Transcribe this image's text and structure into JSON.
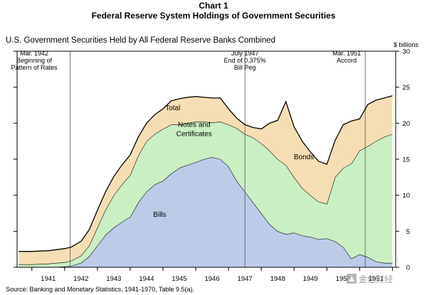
{
  "header": {
    "chart_number": "Chart 1",
    "title": "Federal Reserve System Holdings of Government Securities",
    "subtitle": "U.S. Government Securities Held by All Federal Reserve Banks Combined",
    "unit": "$ billions"
  },
  "source": "Source:  Banking and Monetary Statistics, 1941-1970, Table 9.5(a).",
  "annotations": [
    {
      "id": "mar1942",
      "lines": [
        "Mar. 1942",
        "Beginning of",
        "Pattern of Rates"
      ],
      "x": 1942.17
    },
    {
      "id": "jul1947",
      "lines": [
        "July 1947",
        "End of 0.375%",
        "Bill Peg"
      ],
      "x": 1947.5
    },
    {
      "id": "mar1951",
      "lines": [
        "Mar. 1951",
        "Accord"
      ],
      "x": 1951.17
    }
  ],
  "area_labels": {
    "total": "Total",
    "notes": [
      "Notes and",
      "Certificates"
    ],
    "bonds": "Bonds",
    "bills": "Bills"
  },
  "colors": {
    "bonds": "#f5deb3",
    "notes": "#c9efc3",
    "bills": "#bccbe8",
    "line": "#000000",
    "frame": "#000000"
  },
  "watermark": "金色财经",
  "chart_data": {
    "type": "area",
    "stacked": true,
    "title": "Federal Reserve System Holdings of Government Securities",
    "ylabel": "$ billions",
    "xlim": [
      1940.55,
      1952.1
    ],
    "ylim": [
      0,
      30
    ],
    "x_ticks": [
      1941,
      1942,
      1943,
      1944,
      1945,
      1946,
      1947,
      1948,
      1949,
      1950,
      1951
    ],
    "y_ticks": [
      0,
      5,
      10,
      15,
      20,
      25,
      30
    ],
    "x": [
      1940.6,
      1941.0,
      1941.5,
      1942.0,
      1942.2,
      1942.5,
      1942.75,
      1943.0,
      1943.25,
      1943.5,
      1943.75,
      1944.0,
      1944.25,
      1944.5,
      1944.75,
      1945.0,
      1945.25,
      1945.5,
      1945.75,
      1946.0,
      1946.25,
      1946.5,
      1946.75,
      1947.0,
      1947.25,
      1947.5,
      1947.75,
      1948.0,
      1948.25,
      1948.5,
      1948.75,
      1949.0,
      1949.25,
      1949.5,
      1949.75,
      1950.0,
      1950.25,
      1950.5,
      1950.75,
      1951.0,
      1951.25,
      1951.5,
      1951.75,
      1952.0
    ],
    "series": [
      {
        "name": "Bills",
        "values": [
          0.0,
          0.0,
          0.0,
          0.1,
          0.2,
          0.6,
          1.5,
          3.0,
          4.5,
          5.5,
          6.3,
          7.0,
          9.0,
          10.5,
          11.5,
          12.0,
          13.0,
          13.8,
          14.2,
          14.6,
          15.0,
          15.3,
          15.0,
          14.0,
          12.0,
          10.5,
          9.0,
          7.5,
          6.0,
          5.0,
          4.6,
          4.8,
          4.4,
          4.2,
          3.9,
          4.0,
          3.6,
          2.8,
          1.2,
          1.8,
          1.4,
          0.8,
          0.6,
          0.6
        ]
      },
      {
        "name": "Notes and Certificates",
        "values": [
          0.4,
          0.4,
          0.5,
          0.6,
          0.7,
          1.0,
          1.5,
          2.5,
          3.5,
          4.5,
          5.2,
          5.8,
          6.5,
          7.0,
          7.0,
          7.2,
          6.8,
          6.0,
          5.8,
          5.6,
          5.2,
          4.8,
          5.2,
          5.8,
          7.3,
          8.0,
          9.0,
          9.7,
          10.2,
          10.0,
          9.6,
          7.7,
          6.6,
          5.8,
          5.2,
          4.8,
          8.9,
          11.0,
          13.2,
          14.4,
          15.4,
          16.7,
          17.5,
          17.9
        ]
      },
      {
        "name": "Bonds",
        "values": [
          1.8,
          1.8,
          1.8,
          1.9,
          1.9,
          2.0,
          2.2,
          2.4,
          2.5,
          2.6,
          2.7,
          2.8,
          2.6,
          2.5,
          2.7,
          2.8,
          3.3,
          3.6,
          3.6,
          3.5,
          3.4,
          3.4,
          3.3,
          2.2,
          1.4,
          1.3,
          1.4,
          2.0,
          3.8,
          5.4,
          8.8,
          7.0,
          6.5,
          6.0,
          5.6,
          5.5,
          5.1,
          6.0,
          5.9,
          4.4,
          5.8,
          5.7,
          5.4,
          5.3
        ]
      }
    ],
    "total_line": [
      2.2,
      2.2,
      2.3,
      2.6,
      2.8,
      3.6,
      5.2,
      7.9,
      10.5,
      12.6,
      14.2,
      15.6,
      18.1,
      20.0,
      21.2,
      22.0,
      23.1,
      23.4,
      23.6,
      23.7,
      23.6,
      23.5,
      23.5,
      22.0,
      20.7,
      19.8,
      19.4,
      19.2,
      20.0,
      20.4,
      23.0,
      19.5,
      17.5,
      16.0,
      14.7,
      14.3,
      17.6,
      19.8,
      20.3,
      20.6,
      22.6,
      23.2,
      23.5,
      23.8
    ]
  }
}
